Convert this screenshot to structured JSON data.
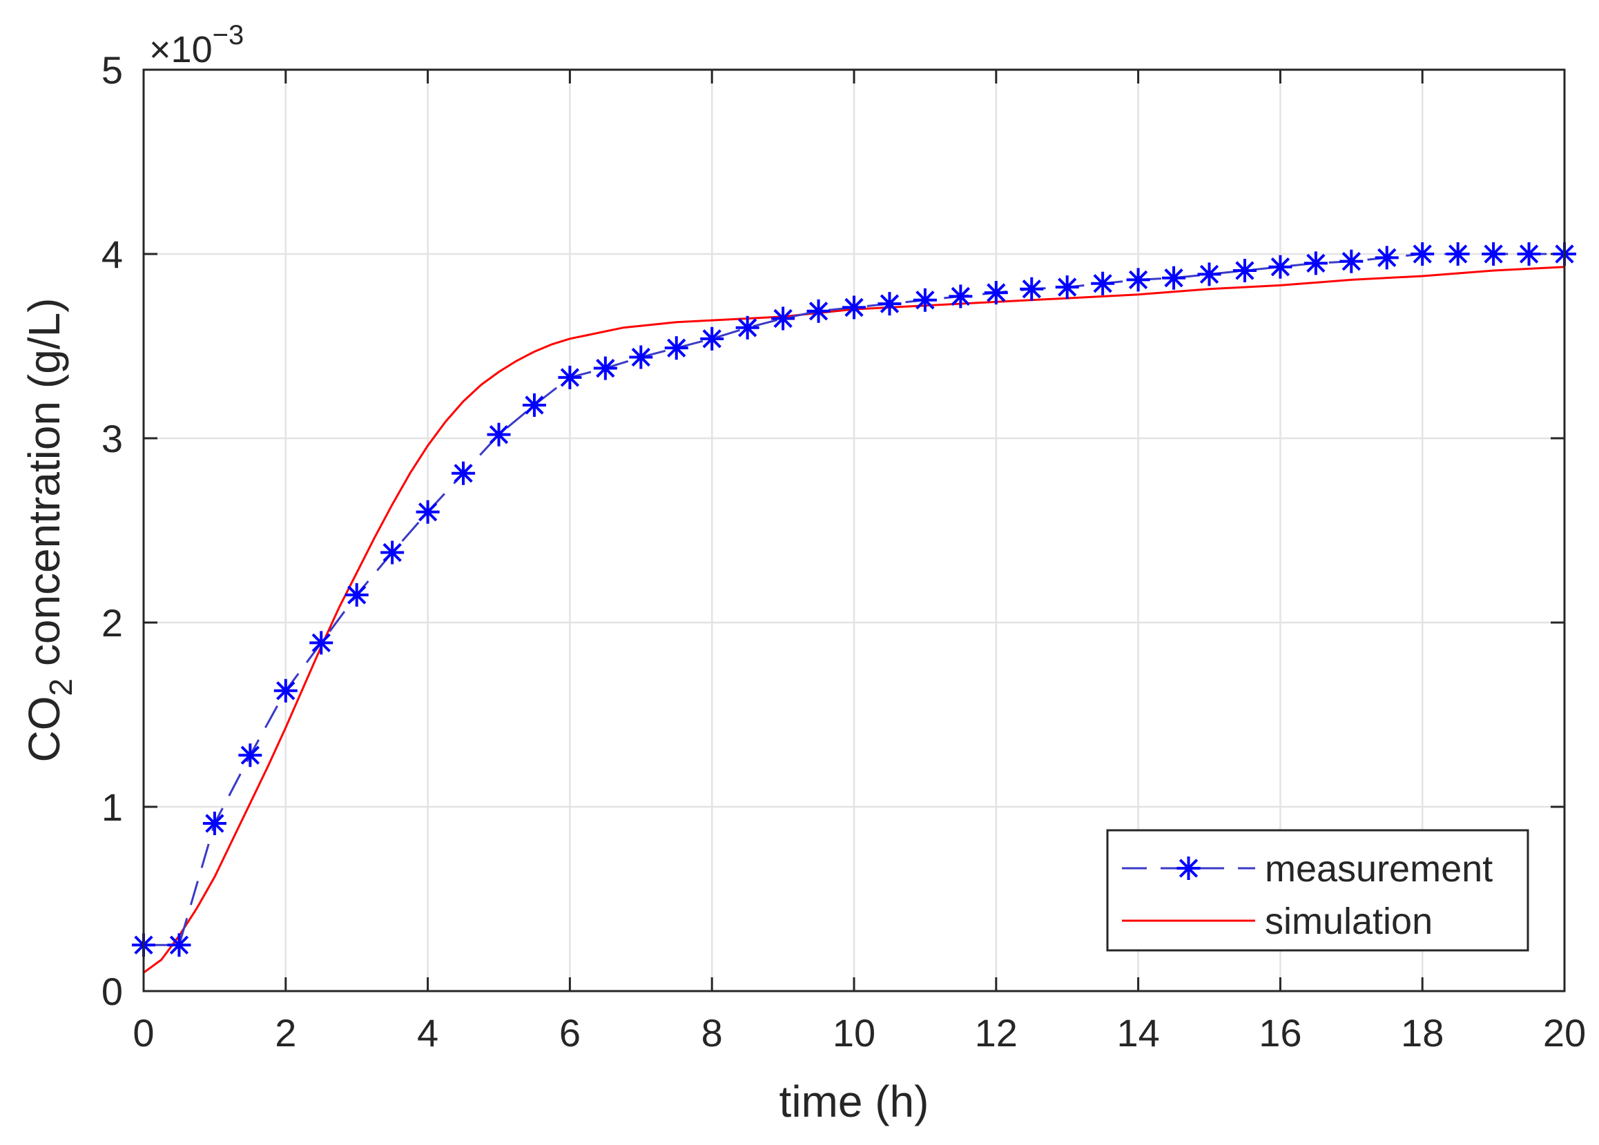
{
  "chart_data": {
    "type": "line",
    "title": "",
    "xlabel": "time (h)",
    "ylabel": {
      "prefix": "CO",
      "subscript": "2",
      "suffix": " concentration (g/L)"
    },
    "y_exponent": {
      "prefix": "×10",
      "power": "−3"
    },
    "xlim": [
      0,
      20
    ],
    "ylim": [
      0,
      5
    ],
    "x_ticks": [
      0,
      2,
      4,
      6,
      8,
      10,
      12,
      14,
      16,
      18,
      20
    ],
    "y_ticks": [
      0,
      1,
      2,
      3,
      4,
      5
    ],
    "x_tick_labels": [
      "0",
      "2",
      "4",
      "6",
      "8",
      "10",
      "12",
      "14",
      "16",
      "18",
      "20"
    ],
    "y_tick_labels": [
      "0",
      "1",
      "2",
      "3",
      "4",
      "5"
    ],
    "grid": true,
    "legend_position": "bottom-right",
    "series": [
      {
        "name": "measurement",
        "style": "dashed line with asterisk markers",
        "color": "#0000ff",
        "line_color": "#3a3ac8",
        "x": [
          0,
          0.5,
          1,
          1.5,
          2,
          2.5,
          3,
          3.5,
          4,
          4.5,
          5,
          5.5,
          6,
          6.5,
          7,
          7.5,
          8,
          8.5,
          9,
          9.5,
          10,
          10.5,
          11,
          11.5,
          12,
          12.5,
          13,
          13.5,
          14,
          14.5,
          15,
          15.5,
          16,
          16.5,
          17,
          17.5,
          18,
          18.5,
          19,
          19.5,
          20
        ],
        "y": [
          0.25,
          0.25,
          0.91,
          1.28,
          1.63,
          1.89,
          2.15,
          2.38,
          2.6,
          2.81,
          3.02,
          3.18,
          3.33,
          3.38,
          3.44,
          3.49,
          3.54,
          3.6,
          3.65,
          3.69,
          3.71,
          3.73,
          3.75,
          3.77,
          3.79,
          3.81,
          3.82,
          3.84,
          3.86,
          3.87,
          3.89,
          3.91,
          3.93,
          3.95,
          3.96,
          3.98,
          4.0,
          4.0,
          4.0,
          4.0,
          4.0
        ]
      },
      {
        "name": "simulation",
        "style": "solid line",
        "color": "#ff0000",
        "x": [
          0,
          0.25,
          0.5,
          0.75,
          1,
          1.25,
          1.5,
          1.75,
          2,
          2.25,
          2.5,
          2.75,
          3,
          3.25,
          3.5,
          3.75,
          4,
          4.25,
          4.5,
          4.75,
          5,
          5.25,
          5.5,
          5.75,
          6,
          6.25,
          6.5,
          6.75,
          7,
          7.5,
          8,
          8.5,
          9,
          9.5,
          10,
          11,
          12,
          13,
          14,
          15,
          16,
          17,
          18,
          19,
          20
        ],
        "y": [
          0.1,
          0.17,
          0.3,
          0.45,
          0.62,
          0.82,
          1.02,
          1.22,
          1.43,
          1.65,
          1.87,
          2.08,
          2.27,
          2.46,
          2.64,
          2.81,
          2.96,
          3.09,
          3.2,
          3.29,
          3.36,
          3.42,
          3.47,
          3.51,
          3.54,
          3.56,
          3.58,
          3.6,
          3.61,
          3.63,
          3.64,
          3.65,
          3.66,
          3.68,
          3.7,
          3.72,
          3.74,
          3.76,
          3.78,
          3.81,
          3.83,
          3.86,
          3.88,
          3.91,
          3.93
        ]
      }
    ]
  }
}
